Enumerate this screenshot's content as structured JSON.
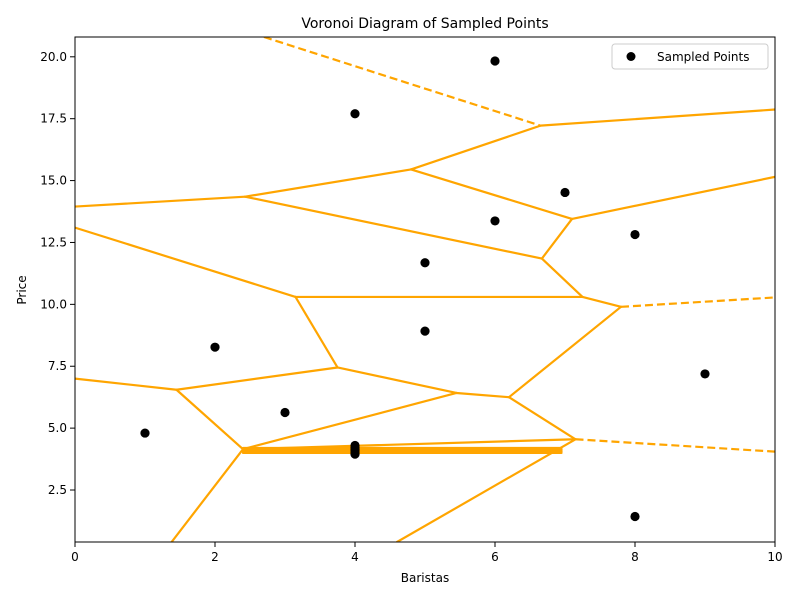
{
  "chart_data": {
    "type": "scatter",
    "title": "Voronoi Diagram of Sampled Points",
    "xlabel": "Baristas",
    "ylabel": "Price",
    "xlim": [
      0,
      10
    ],
    "ylim": [
      0.4,
      20.8
    ],
    "x_ticks": [
      0,
      2,
      4,
      6,
      8,
      10
    ],
    "y_ticks": [
      2.5,
      5.0,
      7.5,
      10.0,
      12.5,
      15.0,
      17.5,
      20.0
    ],
    "grid": false,
    "legend": {
      "placement": "top-right",
      "entries": [
        "Sampled Points"
      ]
    },
    "series": [
      {
        "name": "Sampled Points",
        "color": "#000000",
        "marker": "circle",
        "points": [
          [
            1,
            4.8
          ],
          [
            2,
            8.27
          ],
          [
            3,
            5.63
          ],
          [
            4,
            4.3
          ],
          [
            4,
            4.22
          ],
          [
            4,
            4.15
          ],
          [
            4,
            4.08
          ],
          [
            4,
            4.0
          ],
          [
            4,
            3.95
          ],
          [
            4,
            17.7
          ],
          [
            5,
            11.68
          ],
          [
            5,
            8.92
          ],
          [
            6,
            13.37
          ],
          [
            6,
            19.83
          ],
          [
            7,
            14.52
          ],
          [
            8,
            12.82
          ],
          [
            8,
            1.43
          ],
          [
            9,
            7.19
          ]
        ]
      }
    ],
    "voronoi": {
      "color": "#FFA500",
      "finite_edges": [
        [
          [
            0,
            13.95
          ],
          [
            2.43,
            14.35
          ]
        ],
        [
          [
            2.43,
            14.35
          ],
          [
            4.8,
            15.45
          ]
        ],
        [
          [
            4.8,
            15.45
          ],
          [
            6.65,
            17.22
          ]
        ],
        [
          [
            6.65,
            17.22
          ],
          [
            10,
            17.87
          ]
        ],
        [
          [
            4.8,
            15.45
          ],
          [
            7.1,
            13.45
          ]
        ],
        [
          [
            7.1,
            13.45
          ],
          [
            10,
            15.15
          ]
        ],
        [
          [
            7.1,
            13.45
          ],
          [
            6.67,
            11.85
          ]
        ],
        [
          [
            2.43,
            14.35
          ],
          [
            6.67,
            11.85
          ]
        ],
        [
          [
            6.67,
            11.85
          ],
          [
            7.25,
            10.3
          ]
        ],
        [
          [
            0,
            13.1
          ],
          [
            3.15,
            10.3
          ]
        ],
        [
          [
            3.15,
            10.3
          ],
          [
            7.25,
            10.3
          ]
        ],
        [
          [
            7.25,
            10.3
          ],
          [
            7.8,
            9.9
          ]
        ],
        [
          [
            7.8,
            9.9
          ],
          [
            6.2,
            6.25
          ]
        ],
        [
          [
            3.15,
            10.3
          ],
          [
            3.75,
            7.45
          ]
        ],
        [
          [
            0,
            7.0
          ],
          [
            1.45,
            6.55
          ]
        ],
        [
          [
            1.45,
            6.55
          ],
          [
            3.75,
            7.45
          ]
        ],
        [
          [
            3.75,
            7.45
          ],
          [
            5.45,
            6.42
          ]
        ],
        [
          [
            5.45,
            6.42
          ],
          [
            6.2,
            6.25
          ]
        ],
        [
          [
            6.2,
            6.25
          ],
          [
            7.15,
            4.55
          ]
        ],
        [
          [
            1.45,
            6.55
          ],
          [
            2.4,
            4.15
          ]
        ],
        [
          [
            2.4,
            4.15
          ],
          [
            5.45,
            6.42
          ]
        ],
        [
          [
            2.4,
            4.15
          ],
          [
            1.38,
            0.4
          ]
        ],
        [
          [
            7.15,
            4.55
          ],
          [
            4.6,
            0.4
          ]
        ],
        [
          [
            2.4,
            4.15
          ],
          [
            7.15,
            4.55
          ]
        ],
        [
          [
            2.4,
            4.0
          ],
          [
            6.95,
            4.0
          ]
        ],
        [
          [
            2.4,
            4.05
          ],
          [
            6.95,
            4.05
          ]
        ],
        [
          [
            2.4,
            4.1
          ],
          [
            6.95,
            4.1
          ]
        ],
        [
          [
            2.4,
            4.15
          ],
          [
            6.95,
            4.15
          ]
        ],
        [
          [
            2.4,
            4.2
          ],
          [
            6.95,
            4.2
          ]
        ]
      ],
      "infinite_edges": [
        [
          [
            2.7,
            20.8
          ],
          [
            6.65,
            17.22
          ]
        ],
        [
          [
            7.8,
            9.9
          ],
          [
            10,
            10.28
          ]
        ],
        [
          [
            7.15,
            4.55
          ],
          [
            10,
            4.05
          ]
        ]
      ]
    }
  }
}
